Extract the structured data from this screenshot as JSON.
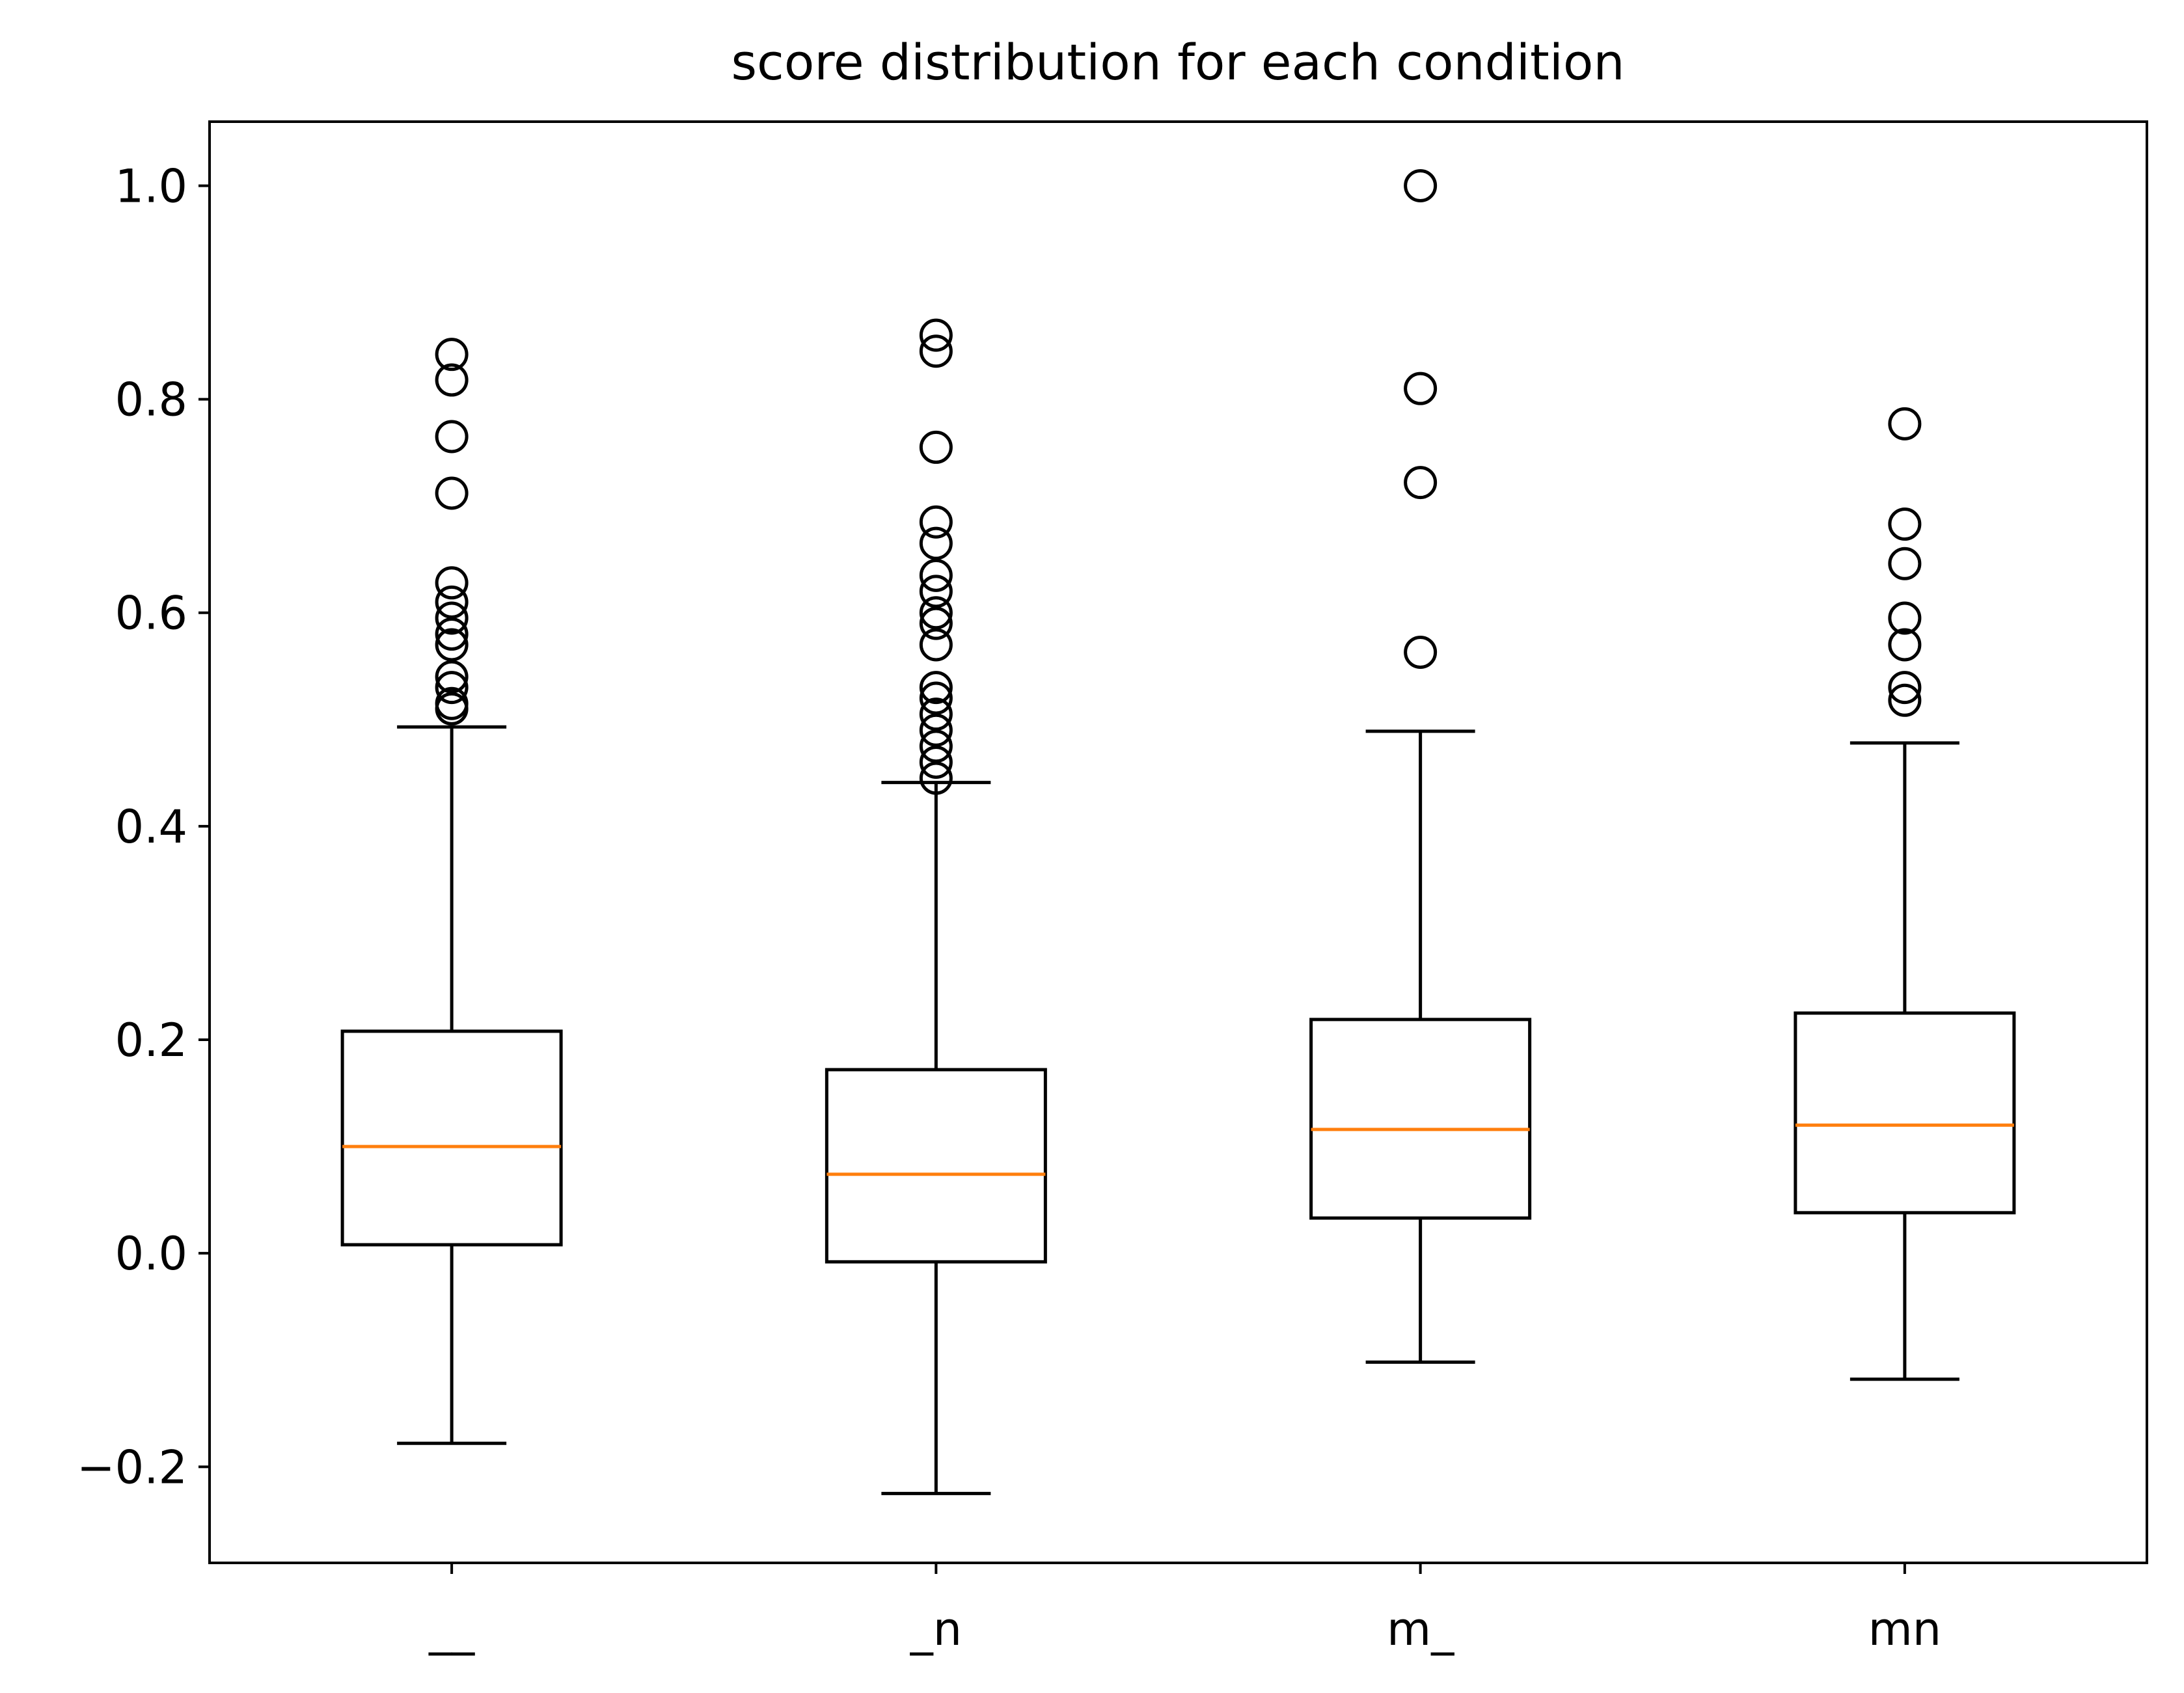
{
  "chart_data": {
    "type": "box",
    "title": "score distribution for each condition",
    "xlabel": "",
    "ylabel": "",
    "categories": [
      "__",
      "_n",
      "m_",
      "mn"
    ],
    "ylim": [
      -0.29,
      1.06
    ],
    "yticks": [
      -0.2,
      0.0,
      0.2,
      0.4,
      0.6,
      0.8,
      1.0
    ],
    "ytick_labels": [
      "−0.2",
      "0.0",
      "0.2",
      "0.4",
      "0.6",
      "0.8",
      "1.0"
    ],
    "grid": false,
    "legend": "none",
    "colors": {
      "box": "#000000",
      "median": "#ff7f0e",
      "flier": "#000000",
      "background": "#ffffff"
    },
    "series": [
      {
        "category": "__",
        "whisker_low": -0.178,
        "q1": 0.008,
        "median": 0.1,
        "q3": 0.208,
        "whisker_high": 0.493,
        "fliers": [
          0.51,
          0.515,
          0.53,
          0.54,
          0.57,
          0.58,
          0.595,
          0.61,
          0.628,
          0.712,
          0.765,
          0.818,
          0.842
        ]
      },
      {
        "category": "_n",
        "whisker_low": -0.225,
        "q1": -0.008,
        "median": 0.074,
        "q3": 0.172,
        "whisker_high": 0.441,
        "fliers": [
          0.445,
          0.46,
          0.475,
          0.49,
          0.505,
          0.52,
          0.53,
          0.57,
          0.59,
          0.6,
          0.62,
          0.635,
          0.665,
          0.685,
          0.755,
          0.845,
          0.86
        ]
      },
      {
        "category": "m_",
        "whisker_low": -0.102,
        "q1": 0.033,
        "median": 0.116,
        "q3": 0.219,
        "whisker_high": 0.489,
        "fliers": [
          0.563,
          0.722,
          0.81,
          1.0
        ]
      },
      {
        "category": "mn",
        "whisker_low": -0.118,
        "q1": 0.038,
        "median": 0.12,
        "q3": 0.225,
        "whisker_high": 0.478,
        "fliers": [
          0.518,
          0.53,
          0.57,
          0.595,
          0.646,
          0.683,
          0.777
        ]
      }
    ]
  }
}
